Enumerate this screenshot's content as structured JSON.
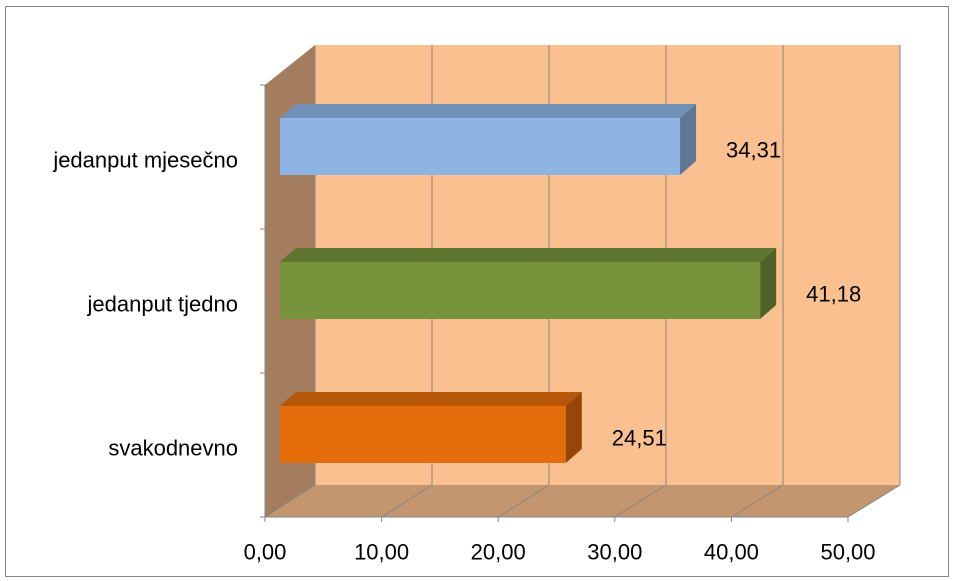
{
  "chart_data": {
    "type": "bar",
    "orientation": "horizontal",
    "three_d": true,
    "categories": [
      "jedanput mjesečno",
      "jedanput tjedno",
      "svakodnevno"
    ],
    "values": [
      34.31,
      41.18,
      24.51
    ],
    "data_labels": [
      "34,31",
      "41,18",
      "24,51"
    ],
    "colors": [
      "#8DB4E2",
      "#77933C",
      "#E46C0A"
    ],
    "xlim": [
      0,
      50
    ],
    "xticks": [
      0,
      10,
      20,
      30,
      40,
      50
    ],
    "x_tick_labels": [
      "0,00",
      "10,00",
      "20,00",
      "30,00",
      "40,00",
      "50,00"
    ],
    "grid": true,
    "legend": "none",
    "wall_colors": {
      "back": "#FAC090",
      "side": "#A47D5E",
      "floor": "#C39670"
    },
    "gridline_color": "#868686"
  }
}
